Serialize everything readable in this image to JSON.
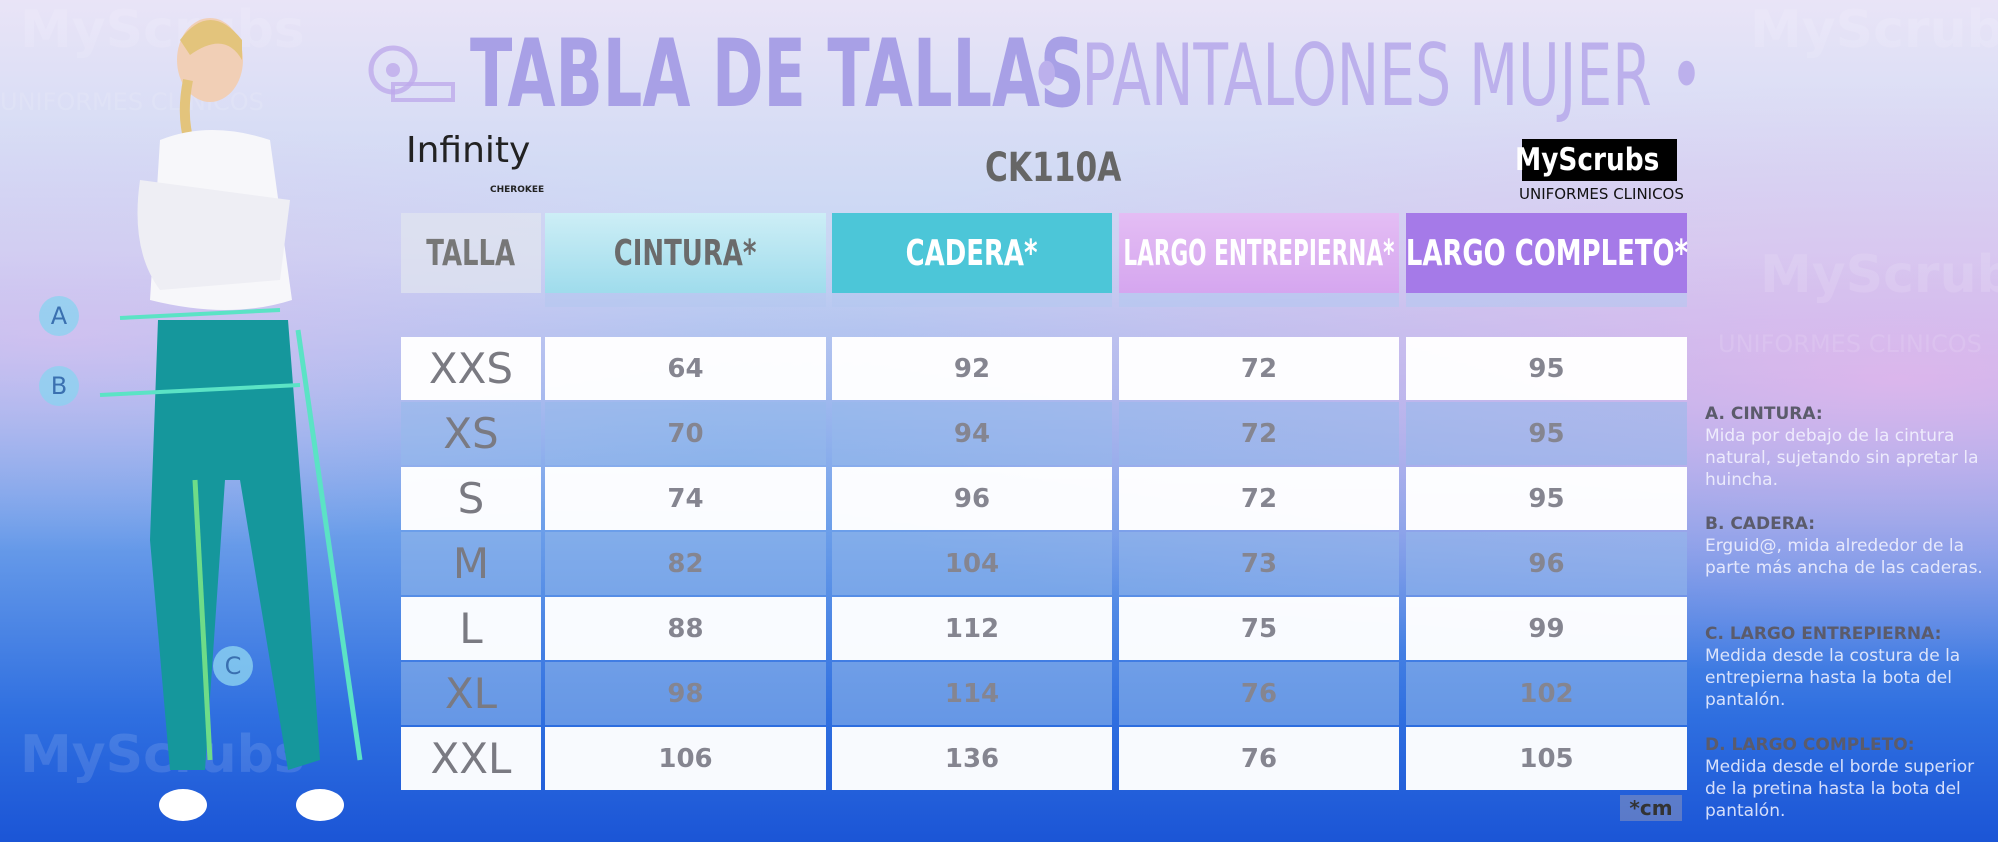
{
  "header": {
    "title": "TABLA DE TALLAS",
    "subtitle": "• PANTALONES MUJER •"
  },
  "brand_left": {
    "name": "Infinity",
    "by": "CHEROKEE"
  },
  "model": "CK110A",
  "brand_right": {
    "name": "MyScrubs",
    "tagline": "UNIFORMES CLINICOS"
  },
  "figure": {
    "markers": [
      "A",
      "B",
      "C"
    ]
  },
  "table": {
    "columns": [
      "TALLA",
      "CINTURA*",
      "CADERA*",
      "LARGO ENTREPIERNA*",
      "LARGO COMPLETO*"
    ],
    "rows": [
      [
        "XXS",
        "64",
        "92",
        "72",
        "95"
      ],
      [
        "XS",
        "70",
        "94",
        "72",
        "95"
      ],
      [
        "S",
        "74",
        "96",
        "72",
        "95"
      ],
      [
        "M",
        "82",
        "104",
        "73",
        "96"
      ],
      [
        "L",
        "88",
        "112",
        "75",
        "99"
      ],
      [
        "XL",
        "98",
        "114",
        "76",
        "102"
      ],
      [
        "XXL",
        "106",
        "136",
        "76",
        "105"
      ]
    ]
  },
  "unit": "*cm",
  "notes": [
    {
      "title": "A. CINTURA:",
      "text": "Mida por debajo de la cintura natural, sujetando sin apretar la huincha."
    },
    {
      "title": "B. CADERA:",
      "text": "Erguid@, mida alrededor de la parte más ancha de las caderas."
    },
    {
      "title": "C. LARGO ENTREPIERNA:",
      "text": "Medida desde la costura de la entrepierna hasta la bota del pantalón."
    },
    {
      "title": "D. LARGO COMPLETO:",
      "text": "Medida desde el borde superior de la pretina hasta la bota del pantalón."
    }
  ]
}
